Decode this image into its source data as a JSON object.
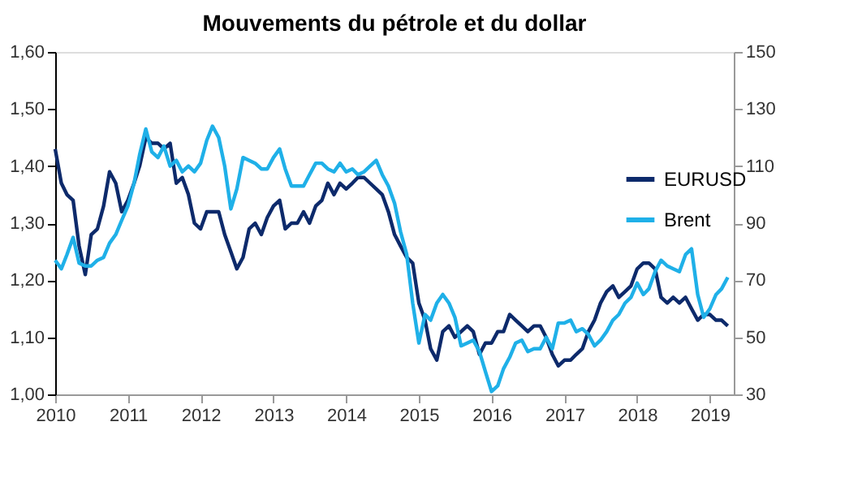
{
  "chart_data": {
    "type": "line",
    "title": "Mouvements du pétrole et du dollar",
    "x": [
      "2010-01",
      "2010-02",
      "2010-03",
      "2010-04",
      "2010-05",
      "2010-06",
      "2010-07",
      "2010-08",
      "2010-09",
      "2010-10",
      "2010-11",
      "2010-12",
      "2011-01",
      "2011-02",
      "2011-03",
      "2011-04",
      "2011-05",
      "2011-06",
      "2011-07",
      "2011-08",
      "2011-09",
      "2011-10",
      "2011-11",
      "2011-12",
      "2012-01",
      "2012-02",
      "2012-03",
      "2012-04",
      "2012-05",
      "2012-06",
      "2012-07",
      "2012-08",
      "2012-09",
      "2012-10",
      "2012-11",
      "2012-12",
      "2013-01",
      "2013-02",
      "2013-03",
      "2013-04",
      "2013-05",
      "2013-06",
      "2013-07",
      "2013-08",
      "2013-09",
      "2013-10",
      "2013-11",
      "2013-12",
      "2014-01",
      "2014-02",
      "2014-03",
      "2014-04",
      "2014-05",
      "2014-06",
      "2014-07",
      "2014-08",
      "2014-09",
      "2014-10",
      "2014-11",
      "2014-12",
      "2015-01",
      "2015-02",
      "2015-03",
      "2015-04",
      "2015-05",
      "2015-06",
      "2015-07",
      "2015-08",
      "2015-09",
      "2015-10",
      "2015-11",
      "2015-12",
      "2016-01",
      "2016-02",
      "2016-03",
      "2016-04",
      "2016-05",
      "2016-06",
      "2016-07",
      "2016-08",
      "2016-09",
      "2016-10",
      "2016-11",
      "2016-12",
      "2017-01",
      "2017-02",
      "2017-03",
      "2017-04",
      "2017-05",
      "2017-06",
      "2017-07",
      "2017-08",
      "2017-09",
      "2017-10",
      "2017-11",
      "2017-12",
      "2018-01",
      "2018-02",
      "2018-03",
      "2018-04",
      "2018-05",
      "2018-06",
      "2018-07",
      "2018-08",
      "2018-09",
      "2018-10",
      "2018-11",
      "2018-12",
      "2019-01",
      "2019-02",
      "2019-03",
      "2019-04"
    ],
    "series": [
      {
        "name": "EURUSD",
        "color": "#0d2a6b",
        "axis": "y",
        "values": [
          1.43,
          1.37,
          1.35,
          1.34,
          1.26,
          1.21,
          1.28,
          1.29,
          1.33,
          1.39,
          1.37,
          1.32,
          1.34,
          1.37,
          1.4,
          1.45,
          1.44,
          1.44,
          1.43,
          1.44,
          1.37,
          1.38,
          1.35,
          1.3,
          1.29,
          1.32,
          1.32,
          1.32,
          1.28,
          1.25,
          1.22,
          1.24,
          1.29,
          1.3,
          1.28,
          1.31,
          1.33,
          1.34,
          1.29,
          1.3,
          1.3,
          1.32,
          1.3,
          1.33,
          1.34,
          1.37,
          1.35,
          1.37,
          1.36,
          1.37,
          1.38,
          1.38,
          1.37,
          1.36,
          1.35,
          1.32,
          1.28,
          1.26,
          1.24,
          1.23,
          1.16,
          1.13,
          1.08,
          1.06,
          1.11,
          1.12,
          1.1,
          1.11,
          1.12,
          1.11,
          1.07,
          1.09,
          1.09,
          1.11,
          1.11,
          1.14,
          1.13,
          1.12,
          1.11,
          1.12,
          1.12,
          1.1,
          1.07,
          1.05,
          1.06,
          1.06,
          1.07,
          1.08,
          1.11,
          1.13,
          1.16,
          1.18,
          1.19,
          1.17,
          1.18,
          1.19,
          1.22,
          1.23,
          1.23,
          1.22,
          1.17,
          1.16,
          1.17,
          1.16,
          1.17,
          1.15,
          1.13,
          1.14,
          1.14,
          1.13,
          1.13,
          1.12
        ]
      },
      {
        "name": "Brent",
        "color": "#1fb0e8",
        "axis": "y2",
        "values": [
          77,
          74,
          79,
          85,
          76,
          75,
          75,
          77,
          78,
          83,
          86,
          91,
          96,
          104,
          114,
          123,
          115,
          113,
          117,
          110,
          112,
          108,
          110,
          108,
          111,
          119,
          124,
          120,
          110,
          95,
          102,
          113,
          112,
          111,
          109,
          109,
          113,
          116,
          109,
          103,
          103,
          103,
          107,
          111,
          111,
          109,
          108,
          111,
          108,
          109,
          107,
          108,
          110,
          112,
          107,
          103,
          97,
          87,
          79,
          62,
          48,
          58,
          56,
          62,
          65,
          62,
          57,
          47,
          48,
          49,
          45,
          38,
          31,
          33,
          39,
          43,
          48,
          49,
          45,
          46,
          46,
          50,
          46,
          55,
          55,
          56,
          52,
          53,
          51,
          47,
          49,
          52,
          56,
          58,
          62,
          64,
          69,
          65,
          67,
          73,
          77,
          75,
          74,
          73,
          79,
          81,
          65,
          57,
          60,
          65,
          67,
          71
        ]
      }
    ],
    "xlim": [
      "2010-01",
      "2019-05"
    ],
    "xticks": [
      "2010",
      "2011",
      "2012",
      "2013",
      "2014",
      "2015",
      "2016",
      "2017",
      "2018",
      "2019"
    ],
    "ylim": [
      1.0,
      1.6
    ],
    "yticks": [
      {
        "value": 1.0,
        "label": "1,00"
      },
      {
        "value": 1.1,
        "label": "1,10"
      },
      {
        "value": 1.2,
        "label": "1,20"
      },
      {
        "value": 1.3,
        "label": "1,30"
      },
      {
        "value": 1.4,
        "label": "1,40"
      },
      {
        "value": 1.5,
        "label": "1,50"
      },
      {
        "value": 1.6,
        "label": "1,60"
      }
    ],
    "y2lim": [
      30,
      150
    ],
    "y2ticks": [
      30,
      50,
      70,
      90,
      110,
      130,
      150
    ],
    "legend": "right",
    "grid": false,
    "line_style": "solid",
    "marker": "none"
  }
}
